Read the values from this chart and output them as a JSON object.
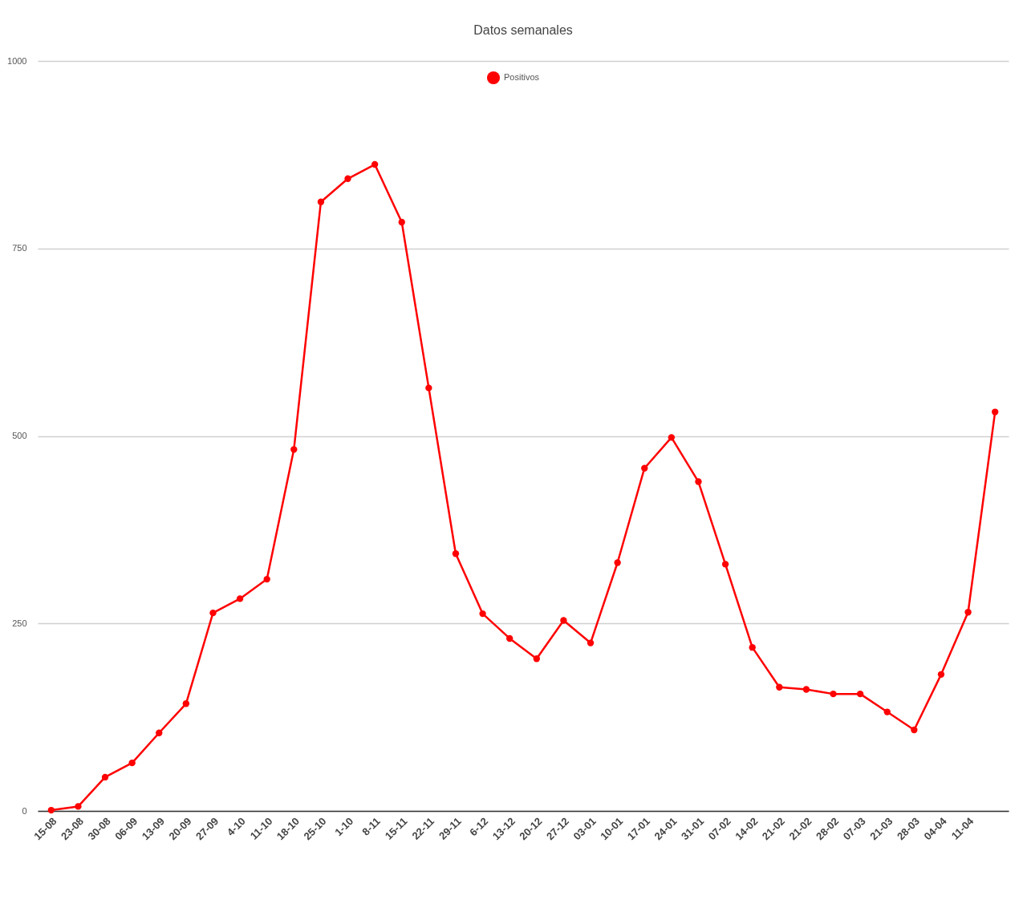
{
  "chart_data": {
    "type": "line",
    "title": "Datos semanales",
    "categories": [
      "15-08",
      "23-08",
      "30-08",
      "06-09",
      "13-09",
      "20-09",
      "27-09",
      "4-10",
      "11-10",
      "18-10",
      "25-10",
      "1-10",
      "8-11",
      "15-11",
      "22-11",
      "29-11",
      "6-12",
      "13-12",
      "20-12",
      "27-12",
      "03-01",
      "10-01",
      "17-01",
      "24-01",
      "31-01",
      "07-02",
      "14-02",
      "21-02",
      "21-02",
      "28-02",
      "07-03",
      "21-03",
      "28-03",
      "04-04",
      "11-04",
      null
    ],
    "series": [
      {
        "name": "Positivos",
        "color": "#ff0000",
        "values": [
          1,
          6,
          45,
          64,
          104,
          143,
          264,
          283,
          309,
          482,
          812,
          843,
          862,
          785,
          564,
          343,
          263,
          230,
          203,
          254,
          224,
          331,
          457,
          498,
          439,
          329,
          218,
          165,
          162,
          156,
          156,
          132,
          108,
          182,
          265,
          532
        ]
      }
    ],
    "ylim": [
      0,
      1000
    ],
    "yticks": [
      0,
      250,
      500,
      750,
      1000
    ],
    "grid": "y",
    "legend": "top",
    "marker": "circle",
    "line_style": "solid"
  }
}
